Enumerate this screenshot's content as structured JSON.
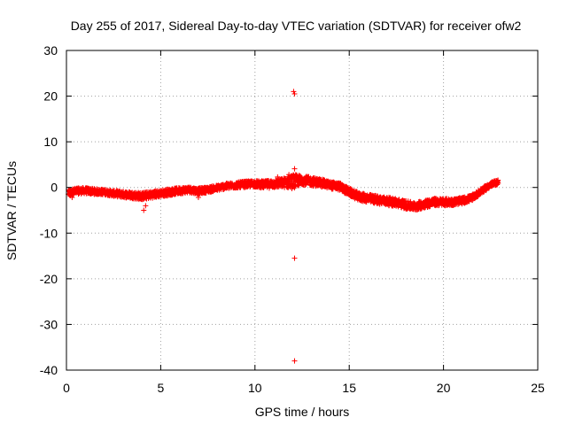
{
  "chart_data": {
    "type": "scatter",
    "title": "Day 255 of 2017, Sidereal Day-to-day VTEC variation (SDTVAR) for receiver ofw2",
    "xlabel": "GPS time / hours",
    "ylabel": "SDTVAR / TECUs",
    "xlim": [
      0,
      25
    ],
    "ylim": [
      -40,
      30
    ],
    "xticks": [
      0,
      5,
      10,
      15,
      20,
      25
    ],
    "yticks": [
      -40,
      -30,
      -20,
      -10,
      0,
      10,
      20,
      30
    ],
    "grid": true,
    "marker": "+",
    "series_color": "#ff0000",
    "series": [
      {
        "name": "SDTVAR",
        "trend": [
          [
            0.1,
            -1.2
          ],
          [
            0.5,
            -0.8
          ],
          [
            1.0,
            -0.7
          ],
          [
            1.5,
            -0.9
          ],
          [
            2.0,
            -1.0
          ],
          [
            2.5,
            -1.3
          ],
          [
            3.0,
            -1.5
          ],
          [
            3.5,
            -1.7
          ],
          [
            4.0,
            -1.9
          ],
          [
            4.5,
            -1.6
          ],
          [
            5.0,
            -1.3
          ],
          [
            5.5,
            -1.0
          ],
          [
            6.0,
            -0.7
          ],
          [
            6.5,
            -0.5
          ],
          [
            7.0,
            -0.8
          ],
          [
            7.5,
            -0.5
          ],
          [
            8.0,
            -0.1
          ],
          [
            8.5,
            0.3
          ],
          [
            9.0,
            0.5
          ],
          [
            9.5,
            0.7
          ],
          [
            10.0,
            0.8
          ],
          [
            10.5,
            0.6
          ],
          [
            11.0,
            0.8
          ],
          [
            11.5,
            1.0
          ],
          [
            12.0,
            1.3
          ],
          [
            12.5,
            1.6
          ],
          [
            13.0,
            1.3
          ],
          [
            13.5,
            1.0
          ],
          [
            14.0,
            0.5
          ],
          [
            14.5,
            0.2
          ],
          [
            15.0,
            -1.0
          ],
          [
            15.5,
            -2.0
          ],
          [
            16.0,
            -2.4
          ],
          [
            16.5,
            -2.7
          ],
          [
            17.0,
            -3.0
          ],
          [
            17.5,
            -3.3
          ],
          [
            18.0,
            -3.8
          ],
          [
            18.5,
            -4.2
          ],
          [
            19.0,
            -3.6
          ],
          [
            19.5,
            -3.2
          ],
          [
            20.0,
            -3.2
          ],
          [
            20.5,
            -3.2
          ],
          [
            21.0,
            -2.9
          ],
          [
            21.5,
            -2.3
          ],
          [
            22.0,
            -0.8
          ],
          [
            22.5,
            0.6
          ],
          [
            22.9,
            1.2
          ]
        ],
        "spread": [
          [
            0.1,
            0.7
          ],
          [
            2.0,
            0.6
          ],
          [
            4.0,
            0.8
          ],
          [
            6.0,
            0.7
          ],
          [
            8.0,
            0.6
          ],
          [
            10.0,
            0.7
          ],
          [
            11.5,
            1.0
          ],
          [
            12.0,
            1.6
          ],
          [
            12.5,
            1.0
          ],
          [
            14.0,
            0.8
          ],
          [
            16.0,
            0.9
          ],
          [
            18.0,
            0.9
          ],
          [
            20.0,
            0.8
          ],
          [
            22.0,
            0.6
          ],
          [
            22.9,
            0.5
          ]
        ],
        "outliers": [
          [
            12.05,
            21.0
          ],
          [
            12.1,
            20.5
          ],
          [
            12.1,
            4.1
          ],
          [
            12.1,
            -15.5
          ],
          [
            12.1,
            -38.0
          ],
          [
            4.1,
            -5.0
          ],
          [
            4.2,
            -4.0
          ],
          [
            0.3,
            -2.2
          ],
          [
            0.2,
            -1.8
          ],
          [
            11.2,
            2.3
          ],
          [
            11.8,
            2.8
          ],
          [
            14.5,
            0.8
          ],
          [
            7.0,
            -2.2
          ]
        ]
      }
    ]
  }
}
